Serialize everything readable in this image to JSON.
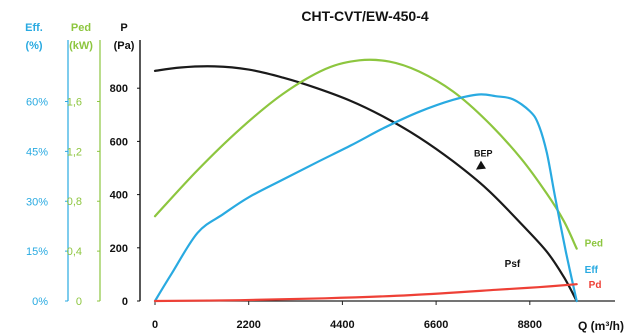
{
  "chart_data": {
    "type": "line",
    "title": "CHT-CVT/EW-450-4",
    "xlabel": "Q (m³/h)",
    "xlim": [
      0,
      10800
    ],
    "x_ticks": [
      0,
      2200,
      4400,
      6600,
      8800
    ],
    "x_tick_labels": [
      "0",
      "2200",
      "4400",
      "6600",
      "8800"
    ],
    "axes": [
      {
        "id": "eff",
        "label": "Eff.",
        "unit": "(%)",
        "color": "#29aae1",
        "range": [
          0,
          80
        ],
        "ticks": [
          0,
          15,
          30,
          45,
          60
        ],
        "tick_labels": [
          "0%",
          "15%",
          "30%",
          "45%",
          "60%"
        ]
      },
      {
        "id": "ped",
        "label": "Ped",
        "unit": "(kW)",
        "color": "#8dc63f",
        "range": [
          0,
          2.133
        ],
        "ticks": [
          0,
          0.4,
          0.8,
          1.2,
          1.6
        ],
        "tick_labels": [
          "0",
          "0,4",
          "0,8",
          "1,2",
          "1,6"
        ]
      },
      {
        "id": "p",
        "label": "P",
        "unit": "(Pa)",
        "color": "#111111",
        "range": [
          0,
          1000
        ],
        "ticks": [
          0,
          200,
          400,
          600,
          800
        ],
        "tick_labels": [
          "0",
          "200",
          "400",
          "600",
          "800"
        ]
      }
    ],
    "series": [
      {
        "name": "Psf",
        "axis": "p",
        "color": "#1a1a1a",
        "x": [
          0,
          600,
          1400,
          2200,
          3000,
          3800,
          4600,
          5400,
          6200,
          7000,
          7800,
          8600,
          9200,
          9600,
          9900
        ],
        "y": [
          865,
          878,
          882,
          870,
          840,
          800,
          752,
          690,
          615,
          525,
          420,
          290,
          185,
          90,
          0
        ]
      },
      {
        "name": "Ped",
        "axis": "ped",
        "color": "#8dc63f",
        "x": [
          0,
          1000,
          2000,
          3000,
          4000,
          4800,
          5500,
          6200,
          7000,
          7800,
          8600,
          9200,
          9600,
          9900
        ],
        "y": [
          0.68,
          1.05,
          1.38,
          1.66,
          1.86,
          1.93,
          1.92,
          1.84,
          1.68,
          1.44,
          1.14,
          0.86,
          0.64,
          0.42
        ]
      },
      {
        "name": "Eff",
        "axis": "eff",
        "color": "#29aae1",
        "x": [
          0,
          400,
          1000,
          1600,
          2200,
          3000,
          3800,
          4600,
          5400,
          6200,
          7000,
          7600,
          8000,
          8400,
          8800,
          9000,
          9200,
          9400,
          9650,
          9900
        ],
        "y": [
          0,
          8.4,
          20.5,
          26.1,
          31.2,
          36.5,
          41.7,
          46.8,
          52.2,
          56.9,
          60.5,
          62.1,
          61.6,
          60.7,
          57.1,
          53.2,
          44.5,
          30.8,
          14.6,
          0
        ]
      },
      {
        "name": "Pd",
        "axis": "p",
        "color": "#ee4036",
        "x": [
          0,
          2000,
          4000,
          6000,
          8000,
          9000,
          9900
        ],
        "y": [
          0,
          3,
          10,
          22,
          42,
          52,
          63
        ]
      }
    ],
    "annotations": [
      {
        "text": "BEP",
        "x": 7700,
        "axis": "p",
        "y": 505
      }
    ],
    "grid": false,
    "legend": "labels at right end of curves"
  }
}
